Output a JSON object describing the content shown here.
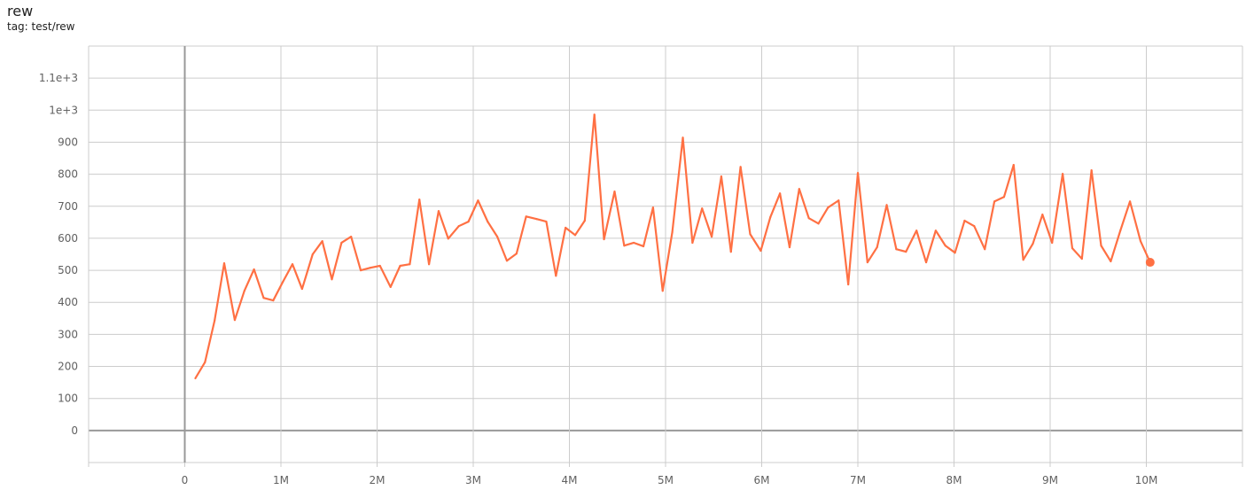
{
  "card": {
    "title": "rew",
    "tag": "tag: test/rew"
  },
  "colors": {
    "series": "#ff7043",
    "grid": "#cccccc",
    "axis": "#999999"
  },
  "chart_data": {
    "type": "line",
    "title": "rew",
    "xlabel": "",
    "ylabel": "",
    "xlim": [
      -1000000,
      11000000
    ],
    "ylim": [
      -100,
      1200
    ],
    "grid": true,
    "x_ticks": [
      0,
      1000000,
      2000000,
      3000000,
      4000000,
      5000000,
      6000000,
      7000000,
      8000000,
      9000000,
      10000000
    ],
    "x_tick_labels": [
      "0",
      "1M",
      "2M",
      "3M",
      "4M",
      "5M",
      "6M",
      "7M",
      "8M",
      "9M",
      "10M"
    ],
    "y_ticks": [
      0,
      100,
      200,
      300,
      400,
      500,
      600,
      700,
      800,
      900,
      1000,
      1100
    ],
    "y_tick_labels": [
      "0",
      "100",
      "200",
      "300",
      "400",
      "500",
      "600",
      "700",
      "800",
      "900",
      "1e+3",
      "1.1e+3"
    ],
    "series": [
      {
        "x_millions": [
          0.11,
          0.21,
          0.31,
          0.41,
          0.52,
          0.62,
          0.72,
          0.82,
          0.92,
          1.02,
          1.12,
          1.22,
          1.33,
          1.43,
          1.53,
          1.63,
          1.73,
          1.83,
          1.93,
          2.03,
          2.14,
          2.24,
          2.34,
          2.44,
          2.54,
          2.64,
          2.74,
          2.85,
          2.95,
          3.05,
          3.15,
          3.25,
          3.35,
          3.45,
          3.55,
          3.66,
          3.76,
          3.86,
          3.96,
          4.06,
          4.16,
          4.26,
          4.36,
          4.47,
          4.57,
          4.67,
          4.77,
          4.87,
          4.97,
          5.07,
          5.18,
          5.28,
          5.38,
          5.48,
          5.58,
          5.68,
          5.78,
          5.88,
          5.99,
          6.09,
          6.19,
          6.29,
          6.39,
          6.49,
          6.59,
          6.69,
          6.8,
          6.9,
          7.0,
          7.1,
          7.2,
          7.3,
          7.4,
          7.5,
          7.61,
          7.71,
          7.81,
          7.91,
          8.01,
          8.11,
          8.21,
          8.32,
          8.42,
          8.52,
          8.62,
          8.72,
          8.82,
          8.92,
          9.02,
          9.13,
          9.23,
          9.33,
          9.43,
          9.53,
          9.63,
          9.73,
          9.83,
          9.94,
          10.04
        ],
        "y": [
          163,
          213,
          343,
          522,
          345,
          436,
          503,
          414,
          406,
          464,
          519,
          442,
          550,
          591,
          472,
          586,
          605,
          500,
          508,
          514,
          448,
          514,
          519,
          721,
          519,
          685,
          599,
          638,
          652,
          718,
          652,
          605,
          530,
          552,
          668,
          660,
          652,
          483,
          633,
          610,
          655,
          986,
          597,
          746,
          577,
          586,
          575,
          696,
          436,
          619,
          914,
          586,
          693,
          605,
          793,
          558,
          823,
          613,
          561,
          666,
          740,
          572,
          754,
          663,
          646,
          696,
          718,
          456,
          804,
          525,
          572,
          704,
          566,
          558,
          624,
          525,
          624,
          577,
          555,
          655,
          638,
          566,
          715,
          729,
          829,
          533,
          583,
          674,
          586,
          801,
          569,
          536,
          812,
          577,
          528,
          624,
          715,
          591,
          525
        ]
      }
    ]
  }
}
